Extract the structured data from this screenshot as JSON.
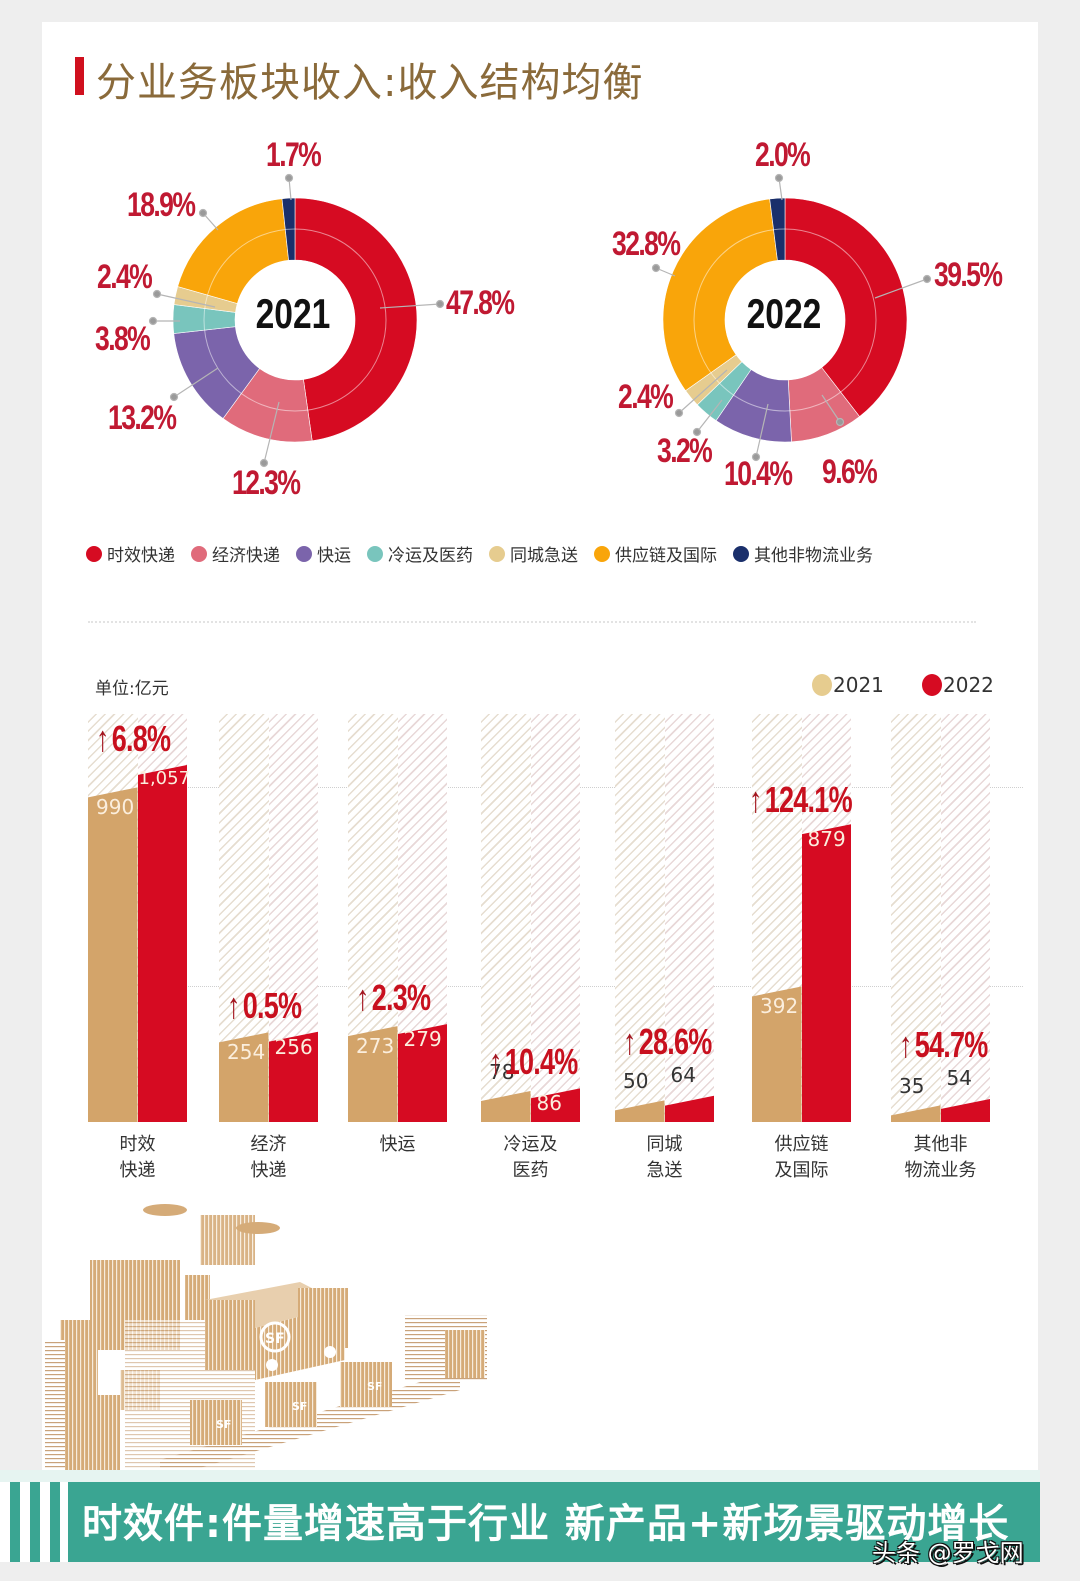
{
  "header": {
    "title": "分业务板块收入:收入结构均衡"
  },
  "colors": {
    "time_express": "#d60b22",
    "economy_express": "#e06b7b",
    "freight": "#7b64ab",
    "cold_chain": "#79c5bd",
    "intracity": "#e6cc8f",
    "supply_chain": "#f9a50a",
    "other": "#1a2f6b",
    "bar_2021": "#d3a46a",
    "bar_2022": "#d60b22",
    "banner": "#3aa592",
    "title_text": "#8a6a3a",
    "label_red": "#c01932"
  },
  "legend": [
    {
      "label": "时效快递",
      "color": "#d60b22"
    },
    {
      "label": "经济快递",
      "color": "#e06b7b"
    },
    {
      "label": "快运",
      "color": "#7b64ab"
    },
    {
      "label": "冷运及医药",
      "color": "#79c5bd"
    },
    {
      "label": "同城急送",
      "color": "#e6cc8f"
    },
    {
      "label": "供应链及国际",
      "color": "#f9a50a"
    },
    {
      "label": "其他非物流业务",
      "color": "#1a2f6b"
    }
  ],
  "bar_section": {
    "unit": "单位:亿元",
    "legend": [
      {
        "label": "2021",
        "color": "#e6cc8f"
      },
      {
        "label": "2022",
        "color": "#d60b22"
      }
    ]
  },
  "banner": {
    "text": "时效件:件量增速高于行业  新产品+新场景驱动增长",
    "watermark": "头条 @罗戈网"
  },
  "chart_data": [
    {
      "type": "pie",
      "title": "2021",
      "categories": [
        "时效快递",
        "经济快递",
        "快运",
        "冷运及医药",
        "同城急送",
        "供应链及国际",
        "其他非物流业务"
      ],
      "values": [
        47.8,
        12.3,
        13.2,
        3.8,
        2.4,
        18.9,
        1.7
      ],
      "labels": [
        "47.8%",
        "12.3%",
        "13.2%",
        "3.8%",
        "2.4%",
        "18.9%",
        "1.7%"
      ],
      "unit": "%",
      "hole": true
    },
    {
      "type": "pie",
      "title": "2022",
      "categories": [
        "时效快递",
        "经济快递",
        "快运",
        "冷运及医药",
        "同城急送",
        "供应链及国际",
        "其他非物流业务"
      ],
      "values": [
        39.5,
        9.6,
        10.4,
        3.2,
        2.4,
        32.8,
        2.0
      ],
      "labels": [
        "39.5%",
        "9.6%",
        "10.4%",
        "3.2%",
        "2.4%",
        "32.8%",
        "2.0%"
      ],
      "unit": "%",
      "hole": true
    },
    {
      "type": "bar",
      "title": "",
      "ylabel": "单位:亿元",
      "categories": [
        "时效快递",
        "经济快递",
        "快运",
        "冷运及医药",
        "同城急送",
        "供应链及国际",
        "其他非物流业务"
      ],
      "category_lines": [
        [
          "时效",
          "快递"
        ],
        [
          "经济",
          "快递"
        ],
        [
          "快运"
        ],
        [
          "冷运及",
          "医药"
        ],
        [
          "同城",
          "急送"
        ],
        [
          "供应链",
          "及国际"
        ],
        [
          "其他非",
          "物流业务"
        ]
      ],
      "series": [
        {
          "name": "2021",
          "values": [
            990,
            254,
            273,
            78,
            50,
            392,
            35
          ],
          "labels": [
            "990",
            "254",
            "273",
            "78",
            "50",
            "392",
            "35"
          ]
        },
        {
          "name": "2022",
          "values": [
            1057,
            256,
            279,
            86,
            64,
            879,
            54
          ],
          "labels": [
            "1,057",
            "256",
            "279",
            "86",
            "64",
            "879",
            "54"
          ]
        }
      ],
      "growth": [
        "6.8%",
        "0.5%",
        "2.3%",
        "10.4%",
        "28.6%",
        "124.1%",
        "54.7%"
      ],
      "growth_arrow": "↑",
      "grid": true,
      "legend_position": "top-right"
    }
  ]
}
